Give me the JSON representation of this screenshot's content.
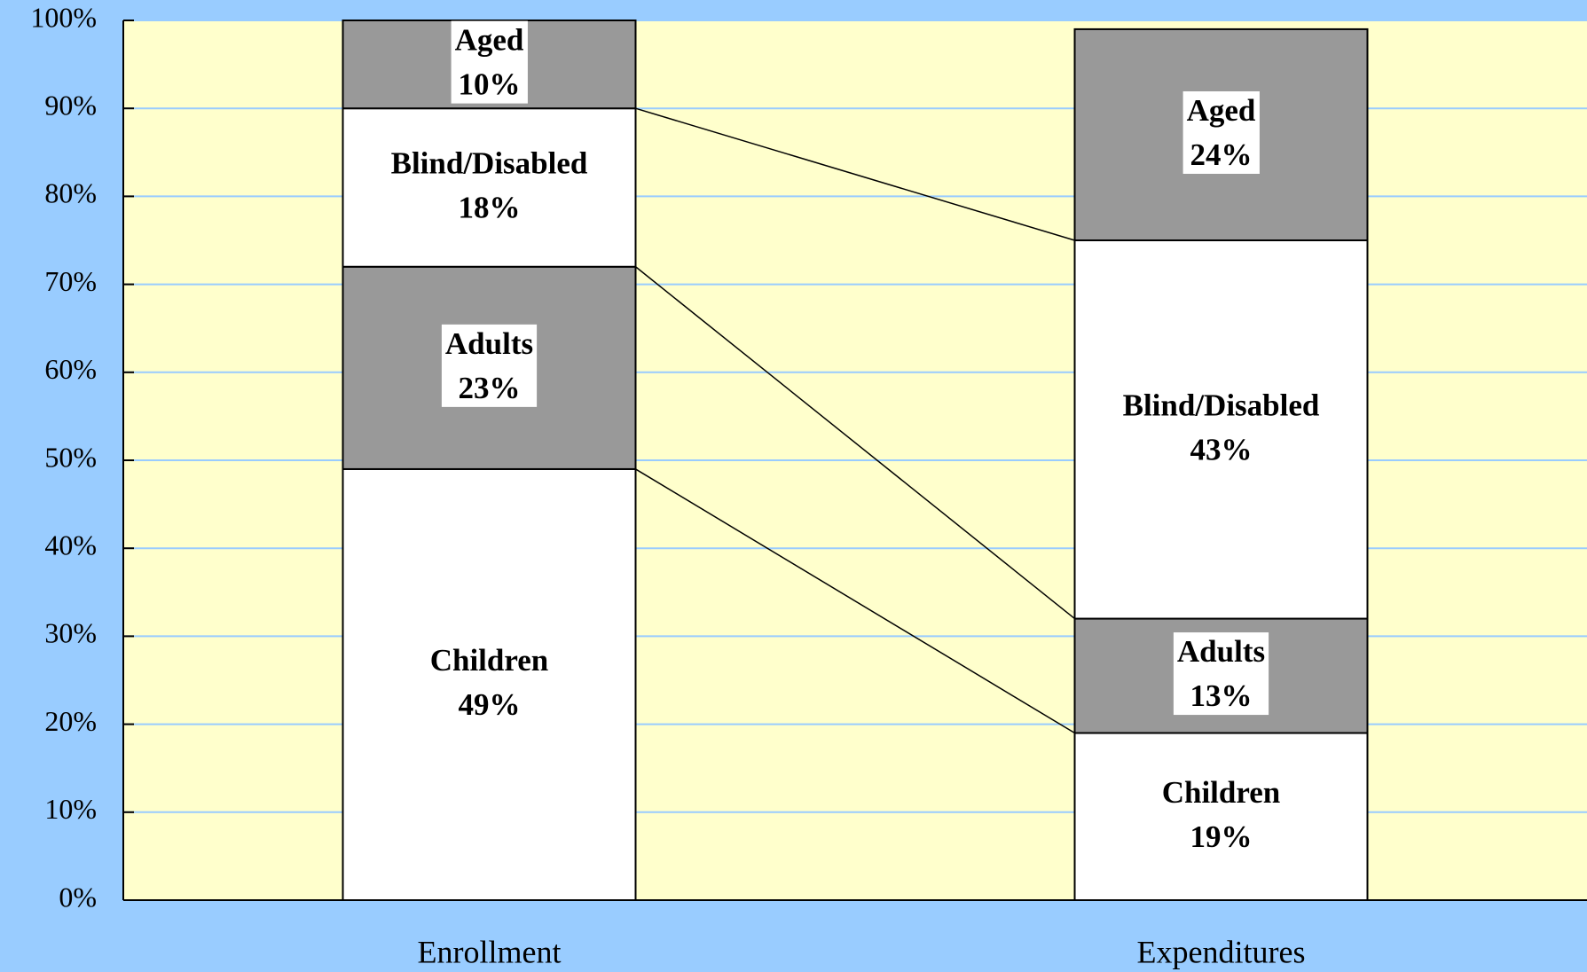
{
  "chart_data": {
    "type": "stacked_bar",
    "categories": [
      "Enrollment",
      "Expenditures"
    ],
    "series": [
      {
        "name": "Children",
        "color": "#ffffff",
        "values": [
          49,
          19
        ],
        "value_labels": [
          "49%",
          "19%"
        ]
      },
      {
        "name": "Adults",
        "color": "#999999",
        "values": [
          23,
          13
        ],
        "value_labels": [
          "23%",
          "13%"
        ]
      },
      {
        "name": "Blind/Disabled",
        "color": "#ffffff",
        "values": [
          18,
          43
        ],
        "value_labels": [
          "18%",
          "43%"
        ]
      },
      {
        "name": "Aged",
        "color": "#999999",
        "values": [
          10,
          24
        ],
        "value_labels": [
          "10%",
          "24%"
        ]
      }
    ],
    "ylim": [
      0,
      100
    ],
    "yticks": [
      {
        "value": 0,
        "label": "0%"
      },
      {
        "value": 10,
        "label": "10%"
      },
      {
        "value": 20,
        "label": "20%"
      },
      {
        "value": 30,
        "label": "30%"
      },
      {
        "value": 40,
        "label": "40%"
      },
      {
        "value": 50,
        "label": "50%"
      },
      {
        "value": 60,
        "label": "60%"
      },
      {
        "value": 70,
        "label": "70%"
      },
      {
        "value": 80,
        "label": "80%"
      },
      {
        "value": 90,
        "label": "90%"
      },
      {
        "value": 100,
        "label": "100%"
      }
    ],
    "grid": true
  }
}
